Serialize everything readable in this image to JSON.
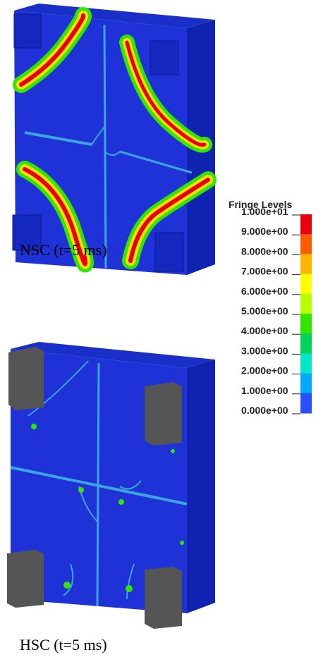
{
  "panels": [
    {
      "caption": "NSC (t=5 ms)"
    },
    {
      "caption": "HSC (t=5 ms)"
    }
  ],
  "legend": {
    "title": "Fringe Levels",
    "levels": [
      "1.000e+01",
      "9.000e+00",
      "8.000e+00",
      "7.000e+00",
      "6.000e+00",
      "5.000e+00",
      "4.000e+00",
      "3.000e+00",
      "2.000e+00",
      "1.000e+00",
      "0.000e+00"
    ],
    "colors": [
      "#e8000a",
      "#ff5a00",
      "#ffb400",
      "#ffff00",
      "#b4ff00",
      "#32e600",
      "#00d25a",
      "#00e6c8",
      "#00aaff",
      "#2850ff"
    ]
  }
}
